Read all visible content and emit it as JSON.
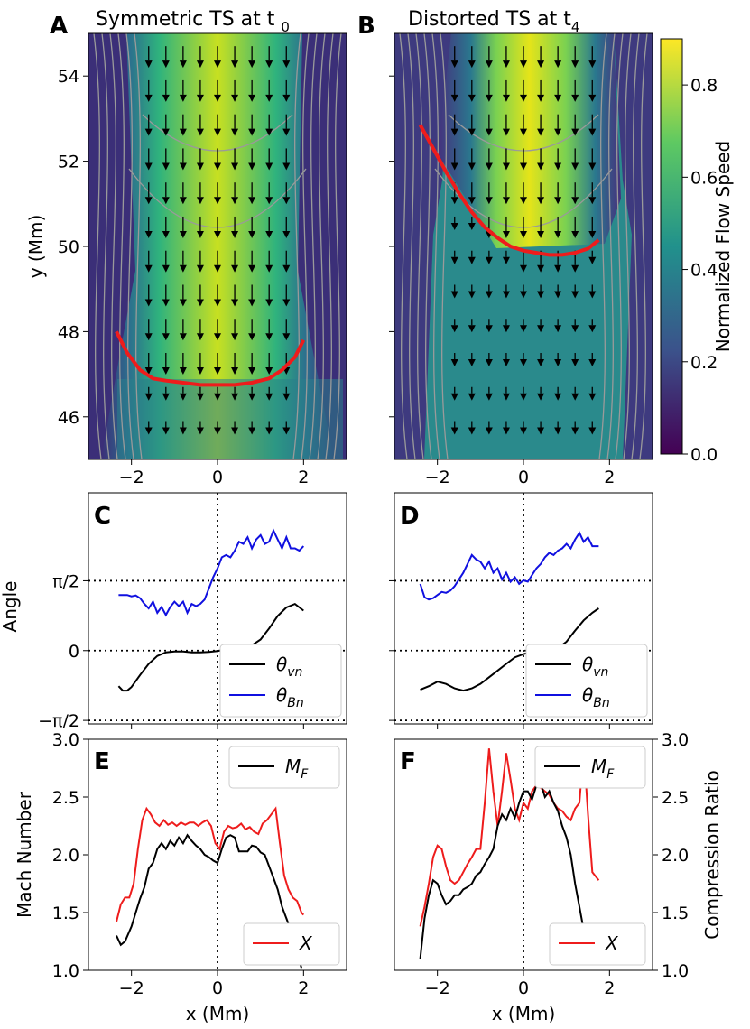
{
  "figure": {
    "colorbar": {
      "label": "Normalized Flow Speed",
      "ticks": [
        "0.0",
        "0.2",
        "0.4",
        "0.6",
        "0.8"
      ],
      "range": [
        0.0,
        0.9
      ],
      "colormap": [
        "#440154",
        "#3b528b",
        "#21918c",
        "#5ec962",
        "#fde725"
      ]
    },
    "colors": {
      "red": "#ee1c1c",
      "black": "#000000",
      "blue": "#1010e0",
      "streamline": "#9a9a9a"
    }
  },
  "chart_data": [
    {
      "panel": "A",
      "type": "heatmap",
      "title": "Symmetric TS at t",
      "title_sub": "0",
      "xlabel": "",
      "ylabel": "y (Mm)",
      "xlim": [
        -3,
        3
      ],
      "ylim": [
        45,
        55
      ],
      "xticks": [
        "−2",
        "0",
        "2"
      ],
      "yticks": [
        "46",
        "48",
        "50",
        "52",
        "54"
      ],
      "shock_x": [
        -2.35,
        -2.1,
        -1.8,
        -1.5,
        -1.2,
        -0.8,
        -0.4,
        0,
        0.4,
        0.8,
        1.2,
        1.5,
        1.8,
        2.0
      ],
      "shock_y": [
        48.0,
        47.5,
        47.1,
        46.9,
        46.85,
        46.8,
        46.75,
        46.75,
        46.75,
        46.8,
        46.9,
        47.1,
        47.4,
        47.8
      ]
    },
    {
      "panel": "B",
      "type": "heatmap",
      "title": "Distorted TS at t",
      "title_sub": "4",
      "xlabel": "",
      "ylabel": "",
      "xlim": [
        -3,
        3
      ],
      "ylim": [
        45,
        55
      ],
      "xticks": [
        "−2",
        "0",
        "2"
      ],
      "yticks": [],
      "shock_x": [
        -2.4,
        -2.1,
        -1.8,
        -1.5,
        -1.2,
        -0.9,
        -0.6,
        -0.3,
        0,
        0.3,
        0.6,
        0.9,
        1.2,
        1.5,
        1.75
      ],
      "shock_y": [
        52.85,
        52.3,
        51.75,
        51.25,
        50.8,
        50.45,
        50.2,
        50.0,
        49.9,
        49.85,
        49.8,
        49.8,
        49.85,
        49.95,
        50.15
      ]
    },
    {
      "panel": "C",
      "type": "line",
      "xlim": [
        -3,
        3
      ],
      "ylim": [
        -1.65,
        3.55
      ],
      "ylabel": "Angle",
      "yticks": [
        "π/2",
        "0",
        "−π/2"
      ],
      "x_vn": [
        -2.3,
        -2.2,
        -2.1,
        -2.0,
        -1.8,
        -1.6,
        -1.4,
        -1.2,
        -1.0,
        -0.8,
        -0.6,
        -0.4,
        -0.2,
        0,
        0.2,
        0.4,
        0.6,
        0.8,
        1.0,
        1.2,
        1.4,
        1.6,
        1.8,
        2.0
      ],
      "y_vn": [
        -0.8,
        -0.9,
        -0.9,
        -0.82,
        -0.55,
        -0.3,
        -0.12,
        -0.04,
        -0.02,
        -0.02,
        -0.04,
        -0.04,
        -0.03,
        -0.01,
        0.03,
        0.05,
        0.08,
        0.12,
        0.25,
        0.5,
        0.78,
        0.97,
        1.05,
        0.9
      ],
      "x_bn": [
        -2.3,
        -2.2,
        -2.1,
        -2.0,
        -1.9,
        -1.8,
        -1.7,
        -1.6,
        -1.5,
        -1.4,
        -1.3,
        -1.2,
        -1.1,
        -1.0,
        -0.9,
        -0.8,
        -0.7,
        -0.6,
        -0.5,
        -0.4,
        -0.3,
        -0.2,
        -0.1,
        0,
        0.1,
        0.2,
        0.3,
        0.4,
        0.5,
        0.6,
        0.7,
        0.8,
        0.9,
        1.0,
        1.1,
        1.2,
        1.3,
        1.4,
        1.5,
        1.6,
        1.7,
        1.8,
        1.9,
        2.0
      ],
      "y_bn": [
        1.25,
        1.25,
        1.25,
        1.22,
        1.24,
        1.18,
        1.05,
        0.95,
        1.1,
        0.85,
        0.98,
        0.8,
        0.98,
        1.1,
        1.0,
        1.1,
        0.85,
        1.05,
        1.0,
        1.05,
        1.15,
        1.4,
        1.65,
        1.85,
        2.1,
        2.15,
        2.1,
        2.25,
        2.45,
        2.4,
        2.55,
        2.3,
        2.5,
        2.6,
        2.4,
        2.45,
        2.7,
        2.5,
        2.3,
        2.55,
        2.3,
        2.3,
        2.25,
        2.35
      ],
      "legend": {
        "vn": "θ",
        "vn_sub": "vn",
        "bn": "θ",
        "bn_sub": "Bn"
      }
    },
    {
      "panel": "D",
      "type": "line",
      "xlim": [
        -3,
        3
      ],
      "ylim": [
        -1.65,
        3.55
      ],
      "x_vn": [
        -2.4,
        -2.2,
        -2.0,
        -1.8,
        -1.6,
        -1.4,
        -1.2,
        -1.0,
        -0.8,
        -0.6,
        -0.4,
        -0.2,
        0,
        0.2,
        0.4,
        0.6,
        0.8,
        1.0,
        1.2,
        1.4,
        1.6,
        1.75
      ],
      "y_vn": [
        -0.88,
        -0.8,
        -0.7,
        -0.75,
        -0.85,
        -0.9,
        -0.85,
        -0.75,
        -0.6,
        -0.45,
        -0.3,
        -0.15,
        -0.08,
        -0.02,
        0.0,
        0.0,
        0.05,
        0.2,
        0.45,
        0.68,
        0.85,
        0.95
      ],
      "x_bn": [
        -2.4,
        -2.3,
        -2.2,
        -2.1,
        -2.0,
        -1.9,
        -1.8,
        -1.7,
        -1.6,
        -1.5,
        -1.4,
        -1.3,
        -1.2,
        -1.1,
        -1.0,
        -0.9,
        -0.8,
        -0.7,
        -0.6,
        -0.5,
        -0.4,
        -0.3,
        -0.2,
        -0.1,
        0,
        0.1,
        0.2,
        0.3,
        0.4,
        0.5,
        0.6,
        0.7,
        0.8,
        0.9,
        1.0,
        1.1,
        1.2,
        1.3,
        1.4,
        1.5,
        1.6,
        1.75
      ],
      "y_bn": [
        1.5,
        1.2,
        1.15,
        1.18,
        1.25,
        1.32,
        1.3,
        1.35,
        1.45,
        1.6,
        1.75,
        1.95,
        2.15,
        2.05,
        2.0,
        1.85,
        2.0,
        1.75,
        1.85,
        1.6,
        1.75,
        1.55,
        1.65,
        1.5,
        1.58,
        1.55,
        1.7,
        1.85,
        1.95,
        2.1,
        2.2,
        2.15,
        2.25,
        2.3,
        2.4,
        2.3,
        2.5,
        2.65,
        2.45,
        2.55,
        2.35,
        2.35
      ],
      "legend": {
        "vn": "θ",
        "vn_sub": "vn",
        "bn": "θ",
        "bn_sub": "Bn"
      }
    },
    {
      "panel": "E",
      "type": "line",
      "xlabel": "x (Mm)",
      "ylabel": "Mach Number",
      "xlim": [
        -3,
        3
      ],
      "ylim": [
        1.0,
        3.0
      ],
      "xticks": [
        "−2",
        "0",
        "2"
      ],
      "yticks": [
        "1.0",
        "1.5",
        "2.0",
        "2.5",
        "3.0"
      ],
      "x_M": [
        -2.35,
        -2.25,
        -2.15,
        -2.0,
        -1.9,
        -1.8,
        -1.7,
        -1.6,
        -1.5,
        -1.4,
        -1.3,
        -1.2,
        -1.1,
        -1.0,
        -0.9,
        -0.8,
        -0.7,
        -0.6,
        -0.5,
        -0.4,
        -0.3,
        -0.2,
        -0.1,
        0,
        0.1,
        0.2,
        0.3,
        0.4,
        0.5,
        0.6,
        0.7,
        0.8,
        0.9,
        1.0,
        1.1,
        1.2,
        1.3,
        1.4,
        1.5,
        1.6,
        1.7,
        1.8,
        1.85,
        1.95
      ],
      "y_M": [
        1.3,
        1.22,
        1.25,
        1.38,
        1.5,
        1.62,
        1.72,
        1.88,
        1.93,
        2.05,
        2.1,
        2.05,
        2.12,
        2.08,
        2.15,
        2.1,
        2.17,
        2.12,
        2.08,
        2.05,
        2.0,
        1.98,
        1.95,
        1.93,
        2.05,
        2.15,
        2.17,
        2.15,
        2.03,
        2.03,
        2.03,
        2.08,
        2.07,
        2.02,
        2.0,
        1.9,
        1.8,
        1.7,
        1.55,
        1.45,
        1.35,
        1.22,
        1.15,
        1.02
      ],
      "x_X": [
        -2.35,
        -2.25,
        -2.15,
        -2.05,
        -1.95,
        -1.85,
        -1.75,
        -1.65,
        -1.55,
        -1.45,
        -1.35,
        -1.25,
        -1.15,
        -1.05,
        -0.95,
        -0.85,
        -0.75,
        -0.65,
        -0.55,
        -0.45,
        -0.35,
        -0.25,
        -0.15,
        -0.05,
        0.05,
        0.15,
        0.25,
        0.35,
        0.45,
        0.55,
        0.65,
        0.75,
        0.85,
        0.95,
        1.05,
        1.15,
        1.25,
        1.35,
        1.45,
        1.55,
        1.65,
        1.75,
        1.85,
        1.95,
        2.0
      ],
      "y_X": [
        1.42,
        1.57,
        1.63,
        1.63,
        1.75,
        2.05,
        2.3,
        2.4,
        2.35,
        2.28,
        2.25,
        2.3,
        2.26,
        2.28,
        2.25,
        2.28,
        2.26,
        2.28,
        2.28,
        2.25,
        2.28,
        2.3,
        2.25,
        2.1,
        2.05,
        2.2,
        2.25,
        2.23,
        2.24,
        2.27,
        2.22,
        2.24,
        2.2,
        2.18,
        2.27,
        2.3,
        2.35,
        2.4,
        2.1,
        1.82,
        1.7,
        1.63,
        1.6,
        1.5,
        1.48
      ],
      "legend": {
        "M": "M",
        "M_sub": "F",
        "X": "X"
      }
    },
    {
      "panel": "F",
      "type": "line",
      "xlabel": "x (Mm)",
      "ylabel": "Compression Ratio",
      "xlim": [
        -3,
        3
      ],
      "ylim": [
        1.0,
        3.0
      ],
      "xticks": [
        "−2",
        "0",
        "2"
      ],
      "yticks": [
        "1.0",
        "1.5",
        "2.0",
        "2.5",
        "3.0"
      ],
      "x_M": [
        -2.4,
        -2.3,
        -2.2,
        -2.1,
        -2.0,
        -1.9,
        -1.8,
        -1.7,
        -1.6,
        -1.5,
        -1.4,
        -1.3,
        -1.2,
        -1.1,
        -1.0,
        -0.9,
        -0.8,
        -0.7,
        -0.6,
        -0.5,
        -0.4,
        -0.3,
        -0.2,
        -0.1,
        0,
        0.1,
        0.2,
        0.3,
        0.4,
        0.5,
        0.6,
        0.7,
        0.8,
        0.9,
        1.0,
        1.1,
        1.2,
        1.3,
        1.4,
        1.5,
        1.55
      ],
      "y_M": [
        1.1,
        1.45,
        1.65,
        1.78,
        1.75,
        1.65,
        1.57,
        1.6,
        1.65,
        1.65,
        1.7,
        1.72,
        1.75,
        1.82,
        1.85,
        1.92,
        1.98,
        2.05,
        2.25,
        2.35,
        2.3,
        2.4,
        2.32,
        2.45,
        2.55,
        2.55,
        2.48,
        2.6,
        2.62,
        2.5,
        2.55,
        2.45,
        2.38,
        2.25,
        2.15,
        2.0,
        1.75,
        1.55,
        1.35,
        1.25,
        1.15
      ],
      "x_X": [
        -2.4,
        -2.3,
        -2.2,
        -2.1,
        -2.0,
        -1.9,
        -1.8,
        -1.7,
        -1.6,
        -1.5,
        -1.4,
        -1.3,
        -1.2,
        -1.1,
        -1.0,
        -0.9,
        -0.8,
        -0.7,
        -0.6,
        -0.5,
        -0.4,
        -0.3,
        -0.2,
        -0.1,
        0,
        0.1,
        0.2,
        0.3,
        0.4,
        0.5,
        0.6,
        0.7,
        0.8,
        0.9,
        1.0,
        1.1,
        1.2,
        1.3,
        1.4,
        1.5,
        1.6,
        1.75
      ],
      "y_X": [
        1.38,
        1.55,
        1.75,
        1.98,
        2.08,
        2.05,
        1.9,
        1.78,
        1.75,
        1.78,
        1.85,
        1.92,
        1.98,
        2.05,
        2.05,
        2.45,
        2.92,
        2.55,
        2.25,
        2.55,
        2.88,
        2.65,
        2.4,
        2.3,
        2.45,
        2.4,
        2.55,
        2.6,
        2.58,
        2.55,
        2.52,
        2.45,
        2.4,
        2.38,
        2.33,
        2.3,
        2.4,
        2.45,
        2.92,
        2.35,
        1.85,
        1.78
      ],
      "legend": {
        "M": "M",
        "M_sub": "F",
        "X": "X"
      }
    }
  ]
}
